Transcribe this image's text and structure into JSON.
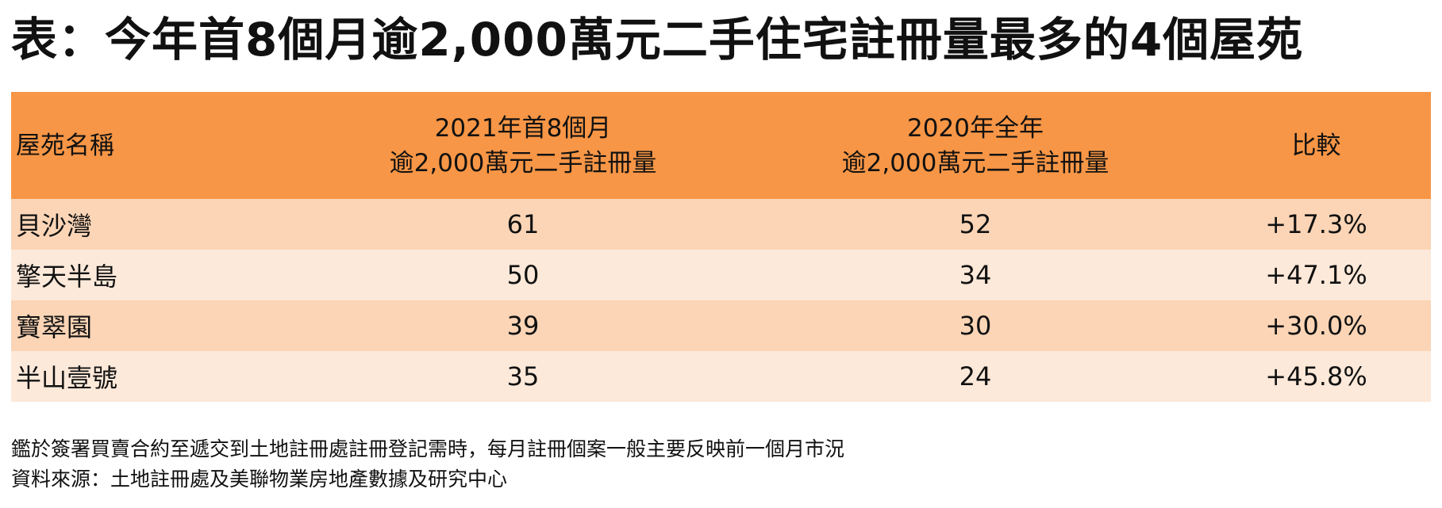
{
  "title": "表：今年首8個月逾2,000萬元二手住宅註冊量最多的4個屋苑",
  "table": {
    "headers": {
      "name": "屋苑名稱",
      "col2_line1": "2021年首8個月",
      "col2_line2": "逾2,000萬元二手註冊量",
      "col3_line1": "2020年全年",
      "col3_line2": "逾2,000萬元二手註冊量",
      "compare": "比較"
    },
    "rows": [
      {
        "name": "貝沙灣",
        "v2021": "61",
        "v2020": "52",
        "change": "+17.3%"
      },
      {
        "name": "擎天半島",
        "v2021": "50",
        "v2020": "34",
        "change": "+47.1%"
      },
      {
        "name": "寶翠園",
        "v2021": "39",
        "v2020": "30",
        "change": "+30.0%"
      },
      {
        "name": "半山壹號",
        "v2021": "35",
        "v2020": "24",
        "change": "+45.8%"
      }
    ]
  },
  "notes": {
    "line1": "鑑於簽署買賣合約至遞交到土地註冊處註冊登記需時，每月註冊個案一般主要反映前一個月市況",
    "line2": "資料來源：土地註冊處及美聯物業房地產數據及研究中心"
  },
  "colors": {
    "header_bg": "#f79646",
    "row_odd_bg": "#fbd5b6",
    "row_even_bg": "#fde9d9"
  }
}
